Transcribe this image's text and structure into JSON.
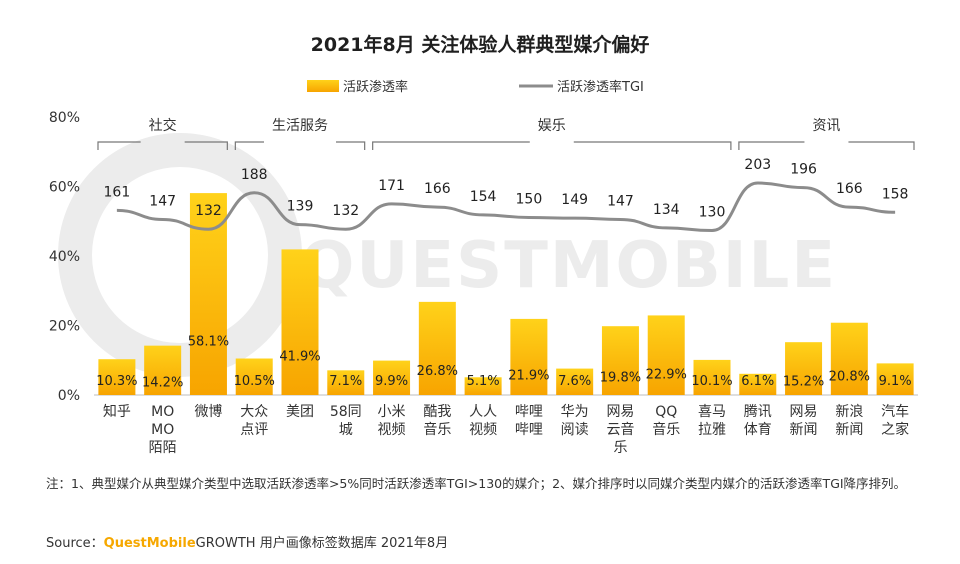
{
  "title": "2021年8月 关注体验人群典型媒介偏好",
  "colors": {
    "bar_top": "#ffd21a",
    "bar_bottom": "#f7a400",
    "line": "#8c8c8c",
    "axis": "#666666",
    "bracket": "#777777",
    "watermark": "#ececec"
  },
  "watermark": "QUESTMOBILE",
  "chart_data": {
    "type": "bar",
    "title": "2021年8月 关注体验人群典型媒介偏好",
    "categories": [
      "知乎",
      "MO MO 陌陌",
      "微博",
      "大众 点评",
      "美团",
      "58同 城",
      "小米 视频",
      "酷我 音乐",
      "人人 视频",
      "哔哩 哔哩",
      "华为 阅读",
      "网易 云音 乐",
      "QQ 音乐",
      "喜马 拉雅",
      "腾讯 体育",
      "网易 新闻",
      "新浪 新闻",
      "汽车 之家"
    ],
    "category_lines": [
      [
        "知乎"
      ],
      [
        "MO",
        "MO",
        "陌陌"
      ],
      [
        "微博"
      ],
      [
        "大众",
        "点评"
      ],
      [
        "美团"
      ],
      [
        "58",
        "城"
      ],
      [
        "小米",
        "视频"
      ],
      [
        "酷我",
        "音乐"
      ],
      [
        "人人",
        "视频"
      ],
      [
        "哔哩",
        "哔哩"
      ],
      [
        "华为",
        "阅读"
      ],
      [
        "网易",
        "云音",
        "乐"
      ],
      [
        "QQ",
        "音乐"
      ],
      [
        "喜马",
        "拉雅"
      ],
      [
        "腾讯",
        "体育"
      ],
      [
        "网易",
        "新闻"
      ],
      [
        "新浪",
        "新闻"
      ],
      [
        "汽车",
        "之家"
      ]
    ],
    "category_58_suffix": "同",
    "series": [
      {
        "name": "活跃渗透率",
        "kind": "bar",
        "values": [
          10.3,
          14.2,
          58.1,
          10.5,
          41.9,
          7.1,
          9.9,
          26.8,
          5.1,
          21.9,
          7.6,
          19.8,
          22.9,
          10.1,
          6.1,
          15.2,
          20.8,
          9.1
        ],
        "labels": [
          "10.3%",
          "14.2%",
          "58.1%",
          "10.5%",
          "41.9%",
          "7.1%",
          "9.9%",
          "26.8%",
          "5.1%",
          "21.9%",
          "7.6%",
          "19.8%",
          "22.9%",
          "10.1%",
          "6.1%",
          "15.2%",
          "20.8%",
          "9.1%"
        ]
      },
      {
        "name": "活跃渗透率TGI",
        "kind": "line",
        "values": [
          161,
          147,
          132,
          188,
          139,
          132,
          171,
          166,
          154,
          150,
          149,
          147,
          134,
          130,
          203,
          196,
          166,
          158
        ],
        "labels": [
          "161",
          "147",
          "132",
          "188",
          "139",
          "132",
          "171",
          "166",
          "154",
          "150",
          "149",
          "147",
          "134",
          "130",
          "203",
          "196",
          "166",
          "158"
        ]
      }
    ],
    "ylim": [
      0,
      80
    ],
    "yticks": [
      "0%",
      "20%",
      "40%",
      "60%",
      "80%"
    ],
    "yticks_values": [
      0,
      20,
      40,
      60,
      80
    ],
    "groups": [
      {
        "label": "社交",
        "from": 0,
        "to": 2
      },
      {
        "label": "生活服务",
        "from": 3,
        "to": 5
      },
      {
        "label": "娱乐",
        "from": 6,
        "to": 13
      },
      {
        "label": "资讯",
        "from": 14,
        "to": 17
      }
    ],
    "legend_position": "top-center",
    "grid": false
  },
  "note": "注：1、典型媒介从典型媒介类型中选取活跃渗透率>5%同时活跃渗透率TGI>130的媒介；2、媒介排序时以同媒介类型内媒介的活跃渗透率TGI降序排列。",
  "source": {
    "prefix": "Source：",
    "brand": "QuestMobile",
    "brand_suffix": "GROWTH",
    "text": "用户画像标签数据库 2021年8月"
  }
}
